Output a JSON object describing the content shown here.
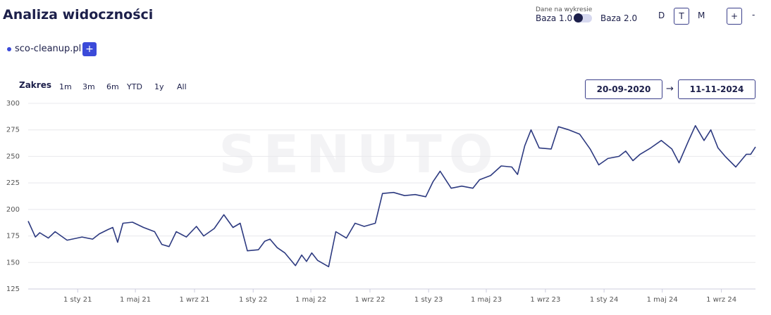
{
  "header": {
    "title": "Analiza widoczności",
    "data_label": "Dane na wykresie",
    "base1": "Baza 1.0",
    "base2": "Baza 2.0",
    "granularity": [
      "D",
      "T",
      "M"
    ],
    "zoom_in": "+",
    "zoom_out": "-"
  },
  "domains": {
    "items": [
      "sco-cleanup.pl"
    ],
    "add": "+"
  },
  "range": {
    "label": "Zakres",
    "options": [
      "1m",
      "3m",
      "6m",
      "YTD",
      "1y",
      "All"
    ],
    "from": "20-09-2020",
    "arrow": "→",
    "to": "11-11-2024"
  },
  "watermark": "SENUTO",
  "chart_data": {
    "type": "line",
    "x": [
      "2020-09-20",
      "2020-10-05",
      "2020-10-14",
      "2020-11-01",
      "2020-11-15",
      "2020-12-10",
      "2021-01-10",
      "2021-02-01",
      "2021-02-15",
      "2021-03-05",
      "2021-03-15",
      "2021-03-25",
      "2021-04-05",
      "2021-04-25",
      "2021-05-18",
      "2021-06-10",
      "2021-06-25",
      "2021-07-10",
      "2021-07-25",
      "2021-08-15",
      "2021-09-05",
      "2021-09-20",
      "2021-10-12",
      "2021-11-01",
      "2021-11-20",
      "2021-12-05",
      "2021-12-20",
      "2022-01-12",
      "2022-01-25",
      "2022-02-05",
      "2022-02-20",
      "2022-03-08",
      "2022-03-30",
      "2022-04-12",
      "2022-04-22",
      "2022-05-03",
      "2022-05-15",
      "2022-06-07",
      "2022-06-22",
      "2022-07-14",
      "2022-08-01",
      "2022-08-20",
      "2022-09-12",
      "2022-09-27",
      "2022-10-20",
      "2022-11-12",
      "2022-12-04",
      "2022-12-26",
      "2023-01-10",
      "2023-01-25",
      "2023-02-17",
      "2023-03-11",
      "2023-04-03",
      "2023-04-17",
      "2023-05-10",
      "2023-06-01",
      "2023-06-23",
      "2023-07-05",
      "2023-07-20",
      "2023-08-02",
      "2023-08-19",
      "2023-09-13",
      "2023-09-28",
      "2023-10-20",
      "2023-11-11",
      "2023-12-03",
      "2023-12-21",
      "2024-01-09",
      "2024-02-01",
      "2024-02-15",
      "2024-03-01",
      "2024-03-16",
      "2024-04-07",
      "2024-04-29",
      "2024-05-21",
      "2024-06-05",
      "2024-06-24",
      "2024-07-09",
      "2024-07-27",
      "2024-08-10",
      "2024-08-25",
      "2024-09-09",
      "2024-10-01",
      "2024-10-23",
      "2024-11-01",
      "2024-11-11"
    ],
    "series": [
      {
        "name": "sco-cleanup.pl",
        "color": "#2d3a80",
        "values": [
          189,
          174,
          178,
          173,
          179,
          171,
          174,
          172,
          177,
          181,
          183,
          169,
          187,
          188,
          183,
          179,
          167,
          165,
          179,
          174,
          184,
          175,
          182,
          195,
          183,
          187,
          161,
          162,
          170,
          172,
          164,
          159,
          147,
          157,
          151,
          159,
          152,
          146,
          179,
          173,
          187,
          184,
          187,
          215,
          216,
          213,
          214,
          212,
          226,
          236,
          220,
          222,
          220,
          228,
          232,
          241,
          240,
          233,
          260,
          275,
          258,
          257,
          278,
          275,
          271,
          257,
          242,
          248,
          250,
          255,
          246,
          252,
          258,
          265,
          257,
          244,
          264,
          279,
          265,
          275,
          258,
          250,
          240,
          252,
          252,
          259
        ]
      }
    ],
    "xlim": [
      "2020-09-20",
      "2024-11-11"
    ],
    "xticks": [
      {
        "value": "2021-01-01",
        "label": "1 sty 21"
      },
      {
        "value": "2021-05-01",
        "label": "1 maj 21"
      },
      {
        "value": "2021-09-01",
        "label": "1 wrz 21"
      },
      {
        "value": "2022-01-01",
        "label": "1 sty 22"
      },
      {
        "value": "2022-05-01",
        "label": "1 maj 22"
      },
      {
        "value": "2022-09-01",
        "label": "1 wrz 22"
      },
      {
        "value": "2023-01-01",
        "label": "1 sty 23"
      },
      {
        "value": "2023-05-01",
        "label": "1 maj 23"
      },
      {
        "value": "2023-09-01",
        "label": "1 wrz 23"
      },
      {
        "value": "2024-01-01",
        "label": "1 sty 24"
      },
      {
        "value": "2024-05-01",
        "label": "1 maj 24"
      },
      {
        "value": "2024-09-01",
        "label": "1 wrz 24"
      }
    ],
    "ylim": [
      125,
      300
    ],
    "yticks": [
      125,
      150,
      175,
      200,
      225,
      250,
      275,
      300
    ],
    "grid": true
  }
}
